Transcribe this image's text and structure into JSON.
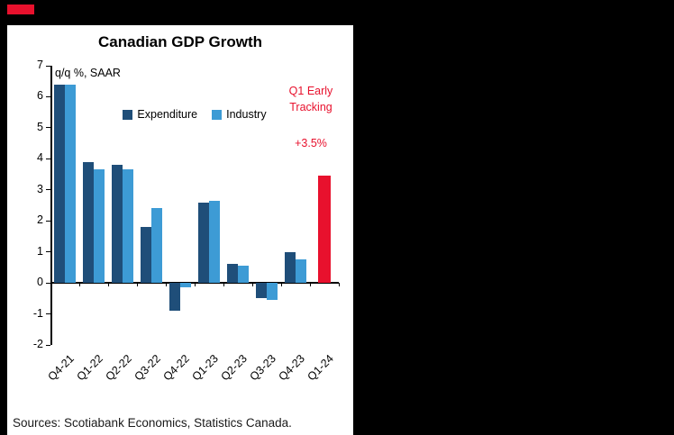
{
  "brand": {
    "accent_red": "#e8112d",
    "navy": "#1f4e79",
    "blue": "#3d9bd5"
  },
  "chart_data": {
    "type": "bar",
    "title": "Canadian GDP Growth",
    "subtitle": "q/q %, SAAR",
    "categories": [
      "Q4-21",
      "Q1-22",
      "Q2-22",
      "Q3-22",
      "Q4-22",
      "Q1-23",
      "Q2-23",
      "Q3-23",
      "Q4-23",
      "Q1-24"
    ],
    "series": [
      {
        "name": "Expenditure",
        "color": "#1f4e79",
        "in_legend": true,
        "values": [
          6.4,
          3.9,
          3.8,
          1.8,
          -0.9,
          2.6,
          0.6,
          -0.5,
          1.0,
          null
        ]
      },
      {
        "name": "Industry",
        "color": "#3d9bd5",
        "in_legend": true,
        "values": [
          6.4,
          3.65,
          3.65,
          2.4,
          -0.15,
          2.65,
          0.55,
          -0.55,
          0.75,
          null
        ]
      },
      {
        "name": "Q1 Early Tracking",
        "color": "#e8112d",
        "in_legend": false,
        "values": [
          null,
          null,
          null,
          null,
          null,
          null,
          null,
          null,
          null,
          3.45
        ]
      }
    ],
    "ylim": [
      -2,
      7
    ],
    "yticks": [
      7,
      6,
      5,
      4,
      3,
      2,
      1,
      0,
      -1,
      -2
    ],
    "grid": false,
    "legend_position": "top-center",
    "annotations": [
      {
        "lines": [
          "Q1 Early",
          "Tracking"
        ],
        "value": "+3.5%",
        "color": "#e8112d"
      }
    ]
  },
  "sources": "Sources: Scotiabank Economics, Statistics Canada."
}
